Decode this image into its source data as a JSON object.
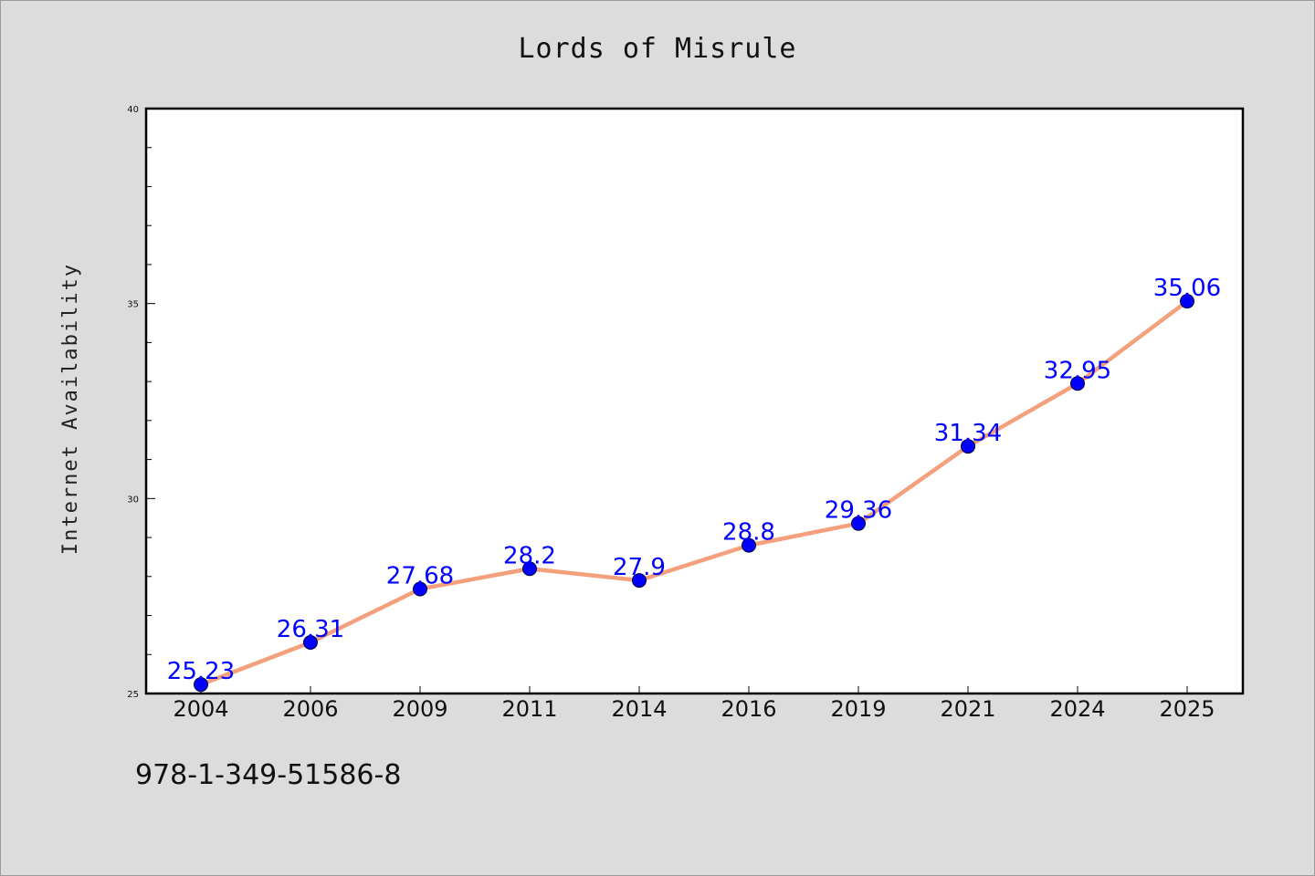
{
  "chart_data": {
    "type": "line",
    "title": "Lords of Misrule",
    "xlabel": "",
    "ylabel": "Internet Availability",
    "categories": [
      "2004",
      "2006",
      "2009",
      "2011",
      "2014",
      "2016",
      "2019",
      "2021",
      "2024",
      "2025"
    ],
    "values": [
      25.23,
      26.31,
      27.68,
      28.2,
      27.9,
      28.8,
      29.36,
      31.34,
      32.95,
      35.06
    ],
    "data_labels": [
      "25.23",
      "26.31",
      "27.68",
      "28.2",
      "27.9",
      "28.8",
      "29.36",
      "31.34",
      "32.95",
      "35.06"
    ],
    "ylim": [
      25,
      40
    ],
    "yticks": [
      "25",
      "30",
      "35",
      "40"
    ],
    "grid": false,
    "line_color": "#f4a07c",
    "marker_color": "#0000ff"
  },
  "footer": {
    "isbn": "978-1-349-51586-8"
  }
}
